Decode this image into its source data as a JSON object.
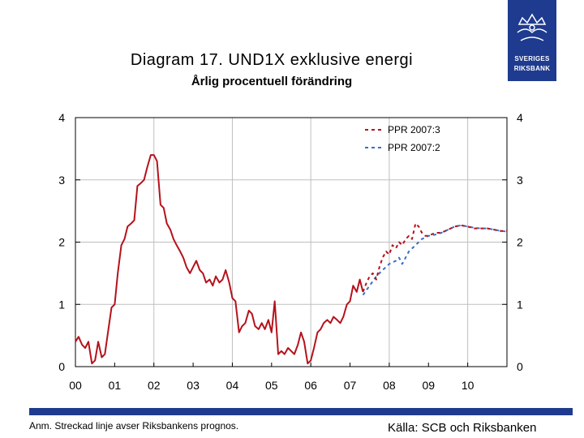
{
  "title": "Diagram 17. UND1X exklusive energi",
  "subtitle": "Årlig procentuell förändring",
  "logo": {
    "line1": "SVERIGES",
    "line2": "RIKSBANK"
  },
  "note": "Anm. Streckad linje avser Riksbankens prognos.",
  "source": "Källa: SCB och Riksbanken",
  "colors": {
    "accent": "#1f3b8f",
    "series_red": "#b5121b",
    "series_blue": "#3a6fc4",
    "grid": "#bfbfbf"
  },
  "chart_data": {
    "type": "line",
    "title": "Diagram 17. UND1X exklusive energi",
    "subtitle": "Årlig procentuell förändring",
    "xlim": [
      2000,
      2011
    ],
    "ylim": [
      0,
      4
    ],
    "y_ticks": [
      0,
      1,
      2,
      3,
      4
    ],
    "x_ticks": [
      {
        "value": 2000,
        "label": "00"
      },
      {
        "value": 2001,
        "label": "01"
      },
      {
        "value": 2002,
        "label": "02"
      },
      {
        "value": 2003,
        "label": "03"
      },
      {
        "value": 2004,
        "label": "04"
      },
      {
        "value": 2005,
        "label": "05"
      },
      {
        "value": 2006,
        "label": "06"
      },
      {
        "value": 2007,
        "label": "07"
      },
      {
        "value": 2008,
        "label": "08"
      },
      {
        "value": 2009,
        "label": "09"
      },
      {
        "value": 2010,
        "label": "10"
      }
    ],
    "grid": "vertical and horizontal",
    "legend_position": "top-right",
    "series": [
      {
        "name": "",
        "style": "solid",
        "color": "#b5121b",
        "points": [
          [
            2000.0,
            0.4
          ],
          [
            2000.08,
            0.48
          ],
          [
            2000.17,
            0.35
          ],
          [
            2000.25,
            0.3
          ],
          [
            2000.33,
            0.4
          ],
          [
            2000.42,
            0.05
          ],
          [
            2000.5,
            0.1
          ],
          [
            2000.58,
            0.4
          ],
          [
            2000.67,
            0.15
          ],
          [
            2000.75,
            0.2
          ],
          [
            2000.83,
            0.55
          ],
          [
            2000.92,
            0.95
          ],
          [
            2001.0,
            1.0
          ],
          [
            2001.08,
            1.5
          ],
          [
            2001.17,
            1.95
          ],
          [
            2001.25,
            2.05
          ],
          [
            2001.33,
            2.25
          ],
          [
            2001.42,
            2.3
          ],
          [
            2001.5,
            2.35
          ],
          [
            2001.58,
            2.9
          ],
          [
            2001.67,
            2.95
          ],
          [
            2001.75,
            3.0
          ],
          [
            2001.83,
            3.2
          ],
          [
            2001.92,
            3.4
          ],
          [
            2002.0,
            3.4
          ],
          [
            2002.08,
            3.3
          ],
          [
            2002.17,
            2.6
          ],
          [
            2002.25,
            2.55
          ],
          [
            2002.33,
            2.3
          ],
          [
            2002.42,
            2.2
          ],
          [
            2002.5,
            2.05
          ],
          [
            2002.58,
            1.95
          ],
          [
            2002.67,
            1.85
          ],
          [
            2002.75,
            1.75
          ],
          [
            2002.83,
            1.6
          ],
          [
            2002.92,
            1.5
          ],
          [
            2003.0,
            1.6
          ],
          [
            2003.08,
            1.7
          ],
          [
            2003.17,
            1.55
          ],
          [
            2003.25,
            1.5
          ],
          [
            2003.33,
            1.35
          ],
          [
            2003.42,
            1.4
          ],
          [
            2003.5,
            1.3
          ],
          [
            2003.58,
            1.45
          ],
          [
            2003.67,
            1.35
          ],
          [
            2003.75,
            1.4
          ],
          [
            2003.83,
            1.55
          ],
          [
            2003.92,
            1.35
          ],
          [
            2004.0,
            1.1
          ],
          [
            2004.08,
            1.05
          ],
          [
            2004.17,
            0.55
          ],
          [
            2004.25,
            0.65
          ],
          [
            2004.33,
            0.7
          ],
          [
            2004.42,
            0.9
          ],
          [
            2004.5,
            0.85
          ],
          [
            2004.58,
            0.65
          ],
          [
            2004.67,
            0.6
          ],
          [
            2004.75,
            0.7
          ],
          [
            2004.83,
            0.6
          ],
          [
            2004.92,
            0.75
          ],
          [
            2005.0,
            0.55
          ],
          [
            2005.08,
            1.05
          ],
          [
            2005.17,
            0.2
          ],
          [
            2005.25,
            0.25
          ],
          [
            2005.33,
            0.2
          ],
          [
            2005.42,
            0.3
          ],
          [
            2005.5,
            0.25
          ],
          [
            2005.58,
            0.2
          ],
          [
            2005.67,
            0.35
          ],
          [
            2005.75,
            0.55
          ],
          [
            2005.83,
            0.4
          ],
          [
            2005.92,
            0.05
          ],
          [
            2006.0,
            0.1
          ],
          [
            2006.08,
            0.3
          ],
          [
            2006.17,
            0.55
          ],
          [
            2006.25,
            0.6
          ],
          [
            2006.33,
            0.7
          ],
          [
            2006.42,
            0.75
          ],
          [
            2006.5,
            0.7
          ],
          [
            2006.58,
            0.8
          ],
          [
            2006.67,
            0.75
          ],
          [
            2006.75,
            0.7
          ],
          [
            2006.83,
            0.8
          ],
          [
            2006.92,
            1.0
          ],
          [
            2007.0,
            1.05
          ],
          [
            2007.08,
            1.3
          ],
          [
            2007.17,
            1.2
          ],
          [
            2007.25,
            1.4
          ],
          [
            2007.33,
            1.2
          ]
        ]
      },
      {
        "name": "PPR 2007:3",
        "style": "dashed",
        "color": "#b5121b",
        "points": [
          [
            2007.33,
            1.2
          ],
          [
            2007.42,
            1.35
          ],
          [
            2007.5,
            1.45
          ],
          [
            2007.58,
            1.5
          ],
          [
            2007.67,
            1.4
          ],
          [
            2007.75,
            1.6
          ],
          [
            2007.83,
            1.75
          ],
          [
            2007.92,
            1.85
          ],
          [
            2008.0,
            1.8
          ],
          [
            2008.08,
            1.95
          ],
          [
            2008.17,
            1.9
          ],
          [
            2008.25,
            2.0
          ],
          [
            2008.33,
            1.95
          ],
          [
            2008.42,
            2.05
          ],
          [
            2008.5,
            2.1
          ],
          [
            2008.58,
            2.05
          ],
          [
            2008.67,
            2.3
          ],
          [
            2008.75,
            2.25
          ],
          [
            2008.83,
            2.15
          ],
          [
            2008.92,
            2.1
          ],
          [
            2009.0,
            2.1
          ],
          [
            2009.17,
            2.15
          ],
          [
            2009.33,
            2.15
          ],
          [
            2009.5,
            2.2
          ],
          [
            2009.67,
            2.25
          ],
          [
            2009.83,
            2.27
          ],
          [
            2010.0,
            2.25
          ],
          [
            2010.17,
            2.22
          ],
          [
            2010.33,
            2.22
          ],
          [
            2010.5,
            2.22
          ],
          [
            2010.67,
            2.2
          ],
          [
            2010.83,
            2.18
          ],
          [
            2011.0,
            2.18
          ]
        ]
      },
      {
        "name": "PPR 2007:2",
        "style": "dashed",
        "color": "#3a6fc4",
        "points": [
          [
            2007.33,
            1.15
          ],
          [
            2007.5,
            1.3
          ],
          [
            2007.67,
            1.45
          ],
          [
            2007.83,
            1.55
          ],
          [
            2008.0,
            1.65
          ],
          [
            2008.17,
            1.7
          ],
          [
            2008.25,
            1.75
          ],
          [
            2008.33,
            1.65
          ],
          [
            2008.5,
            1.85
          ],
          [
            2008.67,
            1.95
          ],
          [
            2008.83,
            2.05
          ],
          [
            2009.0,
            2.1
          ],
          [
            2009.17,
            2.12
          ],
          [
            2009.33,
            2.15
          ],
          [
            2009.5,
            2.2
          ],
          [
            2009.67,
            2.25
          ],
          [
            2009.83,
            2.27
          ],
          [
            2010.0,
            2.25
          ],
          [
            2010.17,
            2.23
          ],
          [
            2010.33,
            2.22
          ],
          [
            2010.5,
            2.22
          ],
          [
            2010.67,
            2.2
          ],
          [
            2010.83,
            2.18
          ],
          [
            2011.0,
            2.17
          ]
        ]
      }
    ]
  }
}
